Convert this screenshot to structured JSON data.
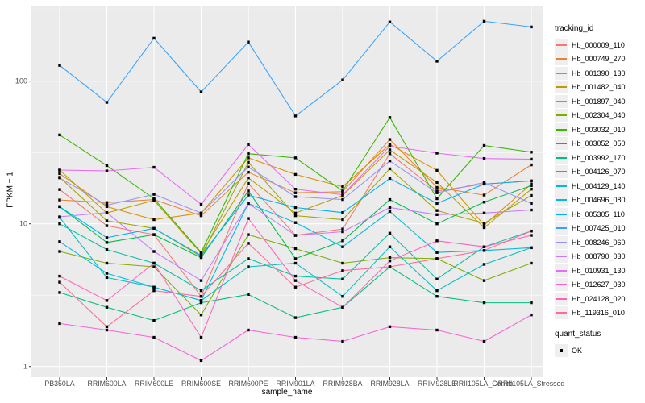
{
  "chart_data": {
    "type": "line",
    "title": "",
    "x_axis_label": "sample_name",
    "y_axis_label": "FPKM + 1",
    "y_scale": "log10",
    "y_ticks": [
      1,
      10,
      100
    ],
    "ylim": [
      0.85,
      340
    ],
    "grid": "on",
    "legend_position": "right",
    "legend_title": "tracking_id",
    "point_legend": {
      "title": "quant_status",
      "entries": [
        "OK"
      ],
      "point_shape": "filled-black-square"
    },
    "panel_background": "#EBEBEB",
    "gridline_color": "#FFFFFF",
    "categories": [
      "PB350LA",
      "RRIM600LA",
      "RRIM600LE",
      "RRIM600SE",
      "RRIM600PE",
      "RRIM901LA",
      "RRIM928BA",
      "RRIM928LA",
      "RRIM928LE",
      "RRII105LA_Control",
      "RRII105LA_Stressed"
    ],
    "series": [
      {
        "name": "Hb_000009_110",
        "color": "#F8766D",
        "values": [
          17.4,
          9.7,
          8.4,
          3.1,
          19.2,
          8.3,
          9.2,
          31,
          17,
          19,
          20
        ]
      },
      {
        "name": "Hb_000749_270",
        "color": "#EA8331",
        "values": [
          14.7,
          14.1,
          14.8,
          11.4,
          23,
          16.5,
          16.8,
          39,
          18,
          15.9,
          25.9
        ]
      },
      {
        "name": "Hb_001390_130",
        "color": "#D89000",
        "values": [
          22.5,
          13.2,
          10.7,
          11.9,
          29,
          22.2,
          18.2,
          36,
          23.7,
          9.8,
          19
        ]
      },
      {
        "name": "Hb_001482_040",
        "color": "#C09B00",
        "values": [
          23.8,
          11.9,
          14.6,
          6.2,
          21,
          11.9,
          15.8,
          33,
          19.5,
          9.4,
          17.5
        ]
      },
      {
        "name": "Hb_001897_040",
        "color": "#A3A500",
        "values": [
          21.2,
          10.5,
          9.3,
          5.9,
          27,
          11.4,
          10.7,
          24.3,
          12.4,
          10.1,
          15.8
        ]
      },
      {
        "name": "Hb_002304_040",
        "color": "#7CAE00",
        "values": [
          6.4,
          5.3,
          5.0,
          2.3,
          8.4,
          6.7,
          5.3,
          5.8,
          5.7,
          4.0,
          5.3
        ]
      },
      {
        "name": "Hb_003032_010",
        "color": "#39B600",
        "values": [
          42,
          25.6,
          15,
          6.3,
          31,
          29,
          17,
          55.6,
          15,
          35.4,
          31.8
        ]
      },
      {
        "name": "Hb_003052_050",
        "color": "#00BB4E",
        "values": [
          13.2,
          7.4,
          8.4,
          5.8,
          17,
          5.7,
          7.6,
          14.8,
          10,
          14.2,
          18.5
        ]
      },
      {
        "name": "Hb_003992_170",
        "color": "#00BF7D",
        "values": [
          3.3,
          2.6,
          2.1,
          2.8,
          3.2,
          2.2,
          2.6,
          5.0,
          3.1,
          2.8,
          2.8
        ]
      },
      {
        "name": "Hb_004126_070",
        "color": "#00C1A3",
        "values": [
          10,
          6.6,
          5.3,
          3.4,
          5.7,
          4.3,
          4.1,
          8.6,
          4.1,
          6.9,
          8.9
        ]
      },
      {
        "name": "Hb_004129_140",
        "color": "#00BFC4",
        "values": [
          11.1,
          4.2,
          3.6,
          2.9,
          5.0,
          5.3,
          3.1,
          6.9,
          3.4,
          5.2,
          6.8
        ]
      },
      {
        "name": "Hb_004696_080",
        "color": "#00BAE0",
        "values": [
          7.5,
          4.5,
          3.6,
          2.9,
          13.9,
          10.2,
          6.9,
          12.2,
          6.3,
          6.5,
          6.8
        ]
      },
      {
        "name": "Hb_005305_110",
        "color": "#00B0F6",
        "values": [
          13.2,
          8.0,
          9.3,
          6.0,
          15.9,
          13,
          12,
          20.8,
          13.9,
          19,
          20
        ]
      },
      {
        "name": "Hb_007425_010",
        "color": "#35A2FF",
        "values": [
          129,
          71,
          200,
          84,
          188,
          57,
          102,
          260,
          138,
          263,
          240
        ]
      },
      {
        "name": "Hb_008246_060",
        "color": "#9590FF",
        "values": [
          21,
          13.5,
          16.1,
          11.9,
          25,
          15.5,
          14.8,
          27.6,
          16.5,
          19.5,
          13.9
        ]
      },
      {
        "name": "Hb_008790_030",
        "color": "#C77CFF",
        "values": [
          11.2,
          12,
          6.4,
          4.0,
          13.9,
          8.3,
          8.8,
          13,
          11.6,
          11.9,
          12.5
        ]
      },
      {
        "name": "Hb_010931_130",
        "color": "#E76BF3",
        "values": [
          23.8,
          23.5,
          24.9,
          13.7,
          36,
          17.5,
          16,
          35,
          31.3,
          28.7,
          28.4
        ]
      },
      {
        "name": "Hb_012627_030",
        "color": "#FB61D7",
        "values": [
          2.0,
          1.8,
          1.6,
          1.1,
          1.8,
          1.6,
          1.5,
          1.9,
          1.8,
          1.5,
          2.3
        ]
      },
      {
        "name": "Hb_024128_020",
        "color": "#FF62BC",
        "values": [
          4.3,
          2.9,
          5.3,
          1.6,
          10.9,
          4.0,
          2.6,
          5.5,
          7.6,
          6.9,
          8.3
        ]
      },
      {
        "name": "Hb_119316_010",
        "color": "#FF6A98",
        "values": [
          3.9,
          1.9,
          3.4,
          3.1,
          7.3,
          3.6,
          4.7,
          5.0,
          5.7,
          6.5,
          8.9
        ]
      }
    ]
  }
}
